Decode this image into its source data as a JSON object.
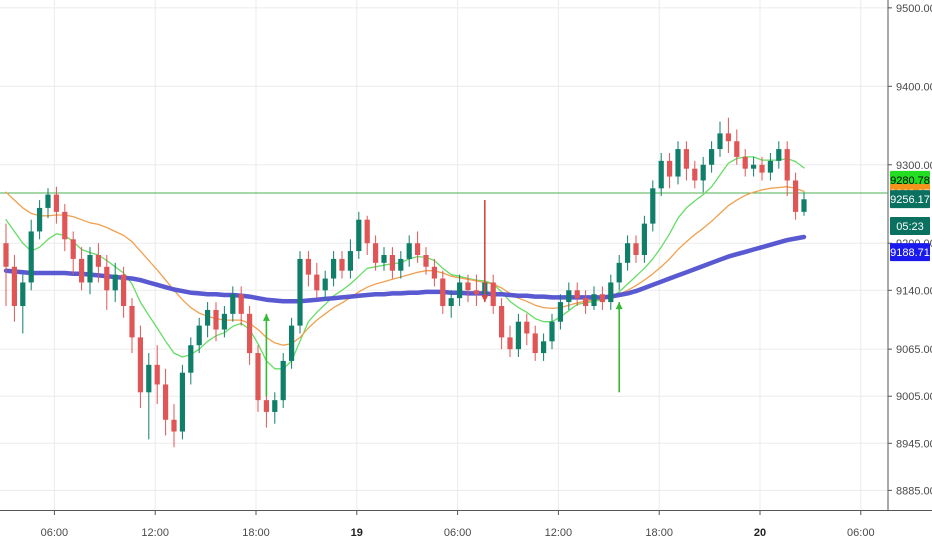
{
  "chart_data": {
    "type": "candlestick",
    "title": "",
    "grid": true,
    "y_axis": {
      "position": "right",
      "ylim": [
        8860,
        9510
      ],
      "ticks": [
        {
          "value": 9500,
          "label": "9500.00"
        },
        {
          "value": 9400,
          "label": "9400.00"
        },
        {
          "value": 9300,
          "label": "9300.00"
        },
        {
          "value": 9200,
          "label": "9200.00"
        },
        {
          "value": 9140,
          "label": "9140.00"
        },
        {
          "value": 9065,
          "label": "9065.00"
        },
        {
          "value": 9005,
          "label": "9005.00"
        },
        {
          "value": 8945,
          "label": "8945.00"
        },
        {
          "value": 8885,
          "label": "8885.00"
        }
      ]
    },
    "x_axis": {
      "xlim": [
        0,
        96
      ],
      "ticks": [
        {
          "x": 6,
          "label": "06:00",
          "bold": false
        },
        {
          "x": 18,
          "label": "12:00",
          "bold": false
        },
        {
          "x": 30,
          "label": "18:00",
          "bold": false
        },
        {
          "x": 42,
          "label": "19",
          "bold": true
        },
        {
          "x": 54,
          "label": "06:00",
          "bold": false
        },
        {
          "x": 66,
          "label": "12:00",
          "bold": false
        },
        {
          "x": 78,
          "label": "18:00",
          "bold": false
        },
        {
          "x": 90,
          "label": "20",
          "bold": true
        },
        {
          "x": 102,
          "label": "06:00",
          "bold": false
        }
      ]
    },
    "horizontal_line": {
      "value": 9263.97,
      "color": "#4caf50"
    },
    "candles": [
      [
        9200,
        9170,
        9225,
        9120
      ],
      [
        9170,
        9120,
        9185,
        9100
      ],
      [
        9120,
        9150,
        9160,
        9085
      ],
      [
        9150,
        9215,
        9230,
        9140
      ],
      [
        9215,
        9245,
        9255,
        9205
      ],
      [
        9245,
        9262,
        9270,
        9232
      ],
      [
        9262,
        9240,
        9272,
        9225
      ],
      [
        9240,
        9205,
        9250,
        9190
      ],
      [
        9205,
        9180,
        9215,
        9160
      ],
      [
        9180,
        9150,
        9195,
        9140
      ],
      [
        9150,
        9185,
        9195,
        9135
      ],
      [
        9185,
        9170,
        9200,
        9150
      ],
      [
        9170,
        9140,
        9185,
        9115
      ],
      [
        9140,
        9160,
        9175,
        9125
      ],
      [
        9160,
        9120,
        9170,
        9105
      ],
      [
        9120,
        9080,
        9130,
        9060
      ],
      [
        9080,
        9010,
        9095,
        8990
      ],
      [
        9010,
        9045,
        9060,
        8950
      ],
      [
        9045,
        9020,
        9070,
        8995
      ],
      [
        9020,
        8975,
        9040,
        8955
      ],
      [
        8975,
        8960,
        8995,
        8940
      ],
      [
        8960,
        9035,
        9045,
        8950
      ],
      [
        9035,
        9070,
        9080,
        9020
      ],
      [
        9070,
        9095,
        9105,
        9060
      ],
      [
        9095,
        9115,
        9125,
        9080
      ],
      [
        9115,
        9090,
        9125,
        9075
      ],
      [
        9090,
        9110,
        9120,
        9080
      ],
      [
        9110,
        9135,
        9145,
        9100
      ],
      [
        9135,
        9110,
        9145,
        9095
      ],
      [
        9110,
        9060,
        9120,
        9045
      ],
      [
        9060,
        9000,
        9070,
        8985
      ],
      [
        9000,
        8985,
        9015,
        8965
      ],
      [
        8985,
        9000,
        9010,
        8970
      ],
      [
        9000,
        9050,
        9060,
        8990
      ],
      [
        9050,
        9095,
        9105,
        9040
      ],
      [
        9095,
        9180,
        9190,
        9085
      ],
      [
        9180,
        9160,
        9190,
        9145
      ],
      [
        9160,
        9140,
        9175,
        9130
      ],
      [
        9140,
        9155,
        9165,
        9130
      ],
      [
        9155,
        9180,
        9190,
        9145
      ],
      [
        9180,
        9165,
        9190,
        9155
      ],
      [
        9165,
        9190,
        9205,
        9155
      ],
      [
        9190,
        9230,
        9240,
        9180
      ],
      [
        9230,
        9200,
        9235,
        9185
      ],
      [
        9200,
        9175,
        9210,
        9165
      ],
      [
        9175,
        9185,
        9195,
        9165
      ],
      [
        9185,
        9165,
        9195,
        9155
      ],
      [
        9165,
        9180,
        9190,
        9155
      ],
      [
        9180,
        9200,
        9210,
        9170
      ],
      [
        9200,
        9185,
        9215,
        9175
      ],
      [
        9185,
        9170,
        9195,
        9160
      ],
      [
        9170,
        9155,
        9180,
        9145
      ],
      [
        9155,
        9120,
        9165,
        9110
      ],
      [
        9120,
        9130,
        9140,
        9105
      ],
      [
        9130,
        9150,
        9160,
        9120
      ],
      [
        9150,
        9140,
        9160,
        9125
      ],
      [
        9140,
        9135,
        9160,
        9120
      ],
      [
        9135,
        9150,
        9165,
        9130
      ],
      [
        9150,
        9120,
        9160,
        9110
      ],
      [
        9120,
        9080,
        9130,
        9065
      ],
      [
        9080,
        9065,
        9095,
        9055
      ],
      [
        9065,
        9100,
        9110,
        9055
      ],
      [
        9100,
        9085,
        9110,
        9070
      ],
      [
        9085,
        9060,
        9095,
        9050
      ],
      [
        9060,
        9075,
        9085,
        9050
      ],
      [
        9075,
        9100,
        9110,
        9065
      ],
      [
        9100,
        9125,
        9135,
        9090
      ],
      [
        9125,
        9140,
        9150,
        9115
      ],
      [
        9140,
        9130,
        9150,
        9120
      ],
      [
        9130,
        9120,
        9140,
        9110
      ],
      [
        9120,
        9135,
        9145,
        9115
      ],
      [
        9135,
        9125,
        9145,
        9115
      ],
      [
        9125,
        9150,
        9160,
        9115
      ],
      [
        9150,
        9175,
        9185,
        9140
      ],
      [
        9175,
        9200,
        9210,
        9165
      ],
      [
        9200,
        9185,
        9210,
        9175
      ],
      [
        9185,
        9225,
        9235,
        9175
      ],
      [
        9225,
        9270,
        9280,
        9215
      ],
      [
        9270,
        9305,
        9315,
        9260
      ],
      [
        9305,
        9285,
        9315,
        9270
      ],
      [
        9285,
        9320,
        9330,
        9275
      ],
      [
        9320,
        9295,
        9330,
        9280
      ],
      [
        9295,
        9280,
        9305,
        9270
      ],
      [
        9280,
        9300,
        9310,
        9265
      ],
      [
        9300,
        9320,
        9330,
        9290
      ],
      [
        9320,
        9340,
        9355,
        9310
      ],
      [
        9340,
        9330,
        9360,
        9315
      ],
      [
        9330,
        9310,
        9345,
        9300
      ],
      [
        9310,
        9295,
        9320,
        9285
      ],
      [
        9295,
        9300,
        9310,
        9285
      ],
      [
        9300,
        9290,
        9310,
        9280
      ],
      [
        9290,
        9305,
        9315,
        9280
      ],
      [
        9305,
        9320,
        9330,
        9295
      ],
      [
        9320,
        9280,
        9330,
        9260
      ],
      [
        9280,
        9240,
        9290,
        9230
      ],
      [
        9240,
        9256,
        9265,
        9235
      ]
    ],
    "series": [
      {
        "color": "#66dd66",
        "width": 1.3,
        "values": [
          9230,
          9215,
          9200,
          9190,
          9195,
          9205,
          9212,
          9210,
          9202,
          9192,
          9188,
          9185,
          9178,
          9170,
          9162,
          9148,
          9125,
          9108,
          9092,
          9075,
          9060,
          9055,
          9058,
          9065,
          9075,
          9082,
          9086,
          9094,
          9098,
          9090,
          9072,
          9050,
          9040,
          9040,
          9050,
          9075,
          9100,
          9112,
          9122,
          9133,
          9140,
          9148,
          9158,
          9168,
          9170,
          9172,
          9174,
          9175,
          9180,
          9183,
          9182,
          9178,
          9168,
          9160,
          9158,
          9155,
          9153,
          9152,
          9148,
          9138,
          9126,
          9118,
          9112,
          9104,
          9100,
          9100,
          9106,
          9114,
          9122,
          9124,
          9126,
          9128,
          9131,
          9138,
          9148,
          9158,
          9168,
          9180,
          9195,
          9212,
          9232,
          9245,
          9254,
          9262,
          9272,
          9287,
          9302,
          9308,
          9310,
          9310,
          9306,
          9306,
          9306,
          9308,
          9304,
          9296
        ]
      },
      {
        "color": "#f0a050",
        "width": 1.3,
        "values": [
          9265,
          9255,
          9245,
          9238,
          9235,
          9235,
          9236,
          9236,
          9234,
          9230,
          9226,
          9224,
          9220,
          9215,
          9210,
          9202,
          9190,
          9178,
          9166,
          9153,
          9140,
          9128,
          9118,
          9111,
          9107,
          9104,
          9102,
          9102,
          9102,
          9098,
          9090,
          9080,
          9073,
          9070,
          9072,
          9080,
          9092,
          9102,
          9110,
          9118,
          9124,
          9131,
          9138,
          9144,
          9148,
          9151,
          9154,
          9157,
          9160,
          9163,
          9165,
          9165,
          9162,
          9158,
          9156,
          9154,
          9152,
          9150,
          9148,
          9143,
          9136,
          9130,
          9126,
          9121,
          9118,
          9117,
          9118,
          9121,
          9124,
          9126,
          9128,
          9130,
          9132,
          9135,
          9140,
          9146,
          9153,
          9161,
          9170,
          9180,
          9192,
          9202,
          9211,
          9219,
          9228,
          9238,
          9248,
          9255,
          9261,
          9265,
          9268,
          9270,
          9271,
          9272,
          9270,
          9266
        ]
      },
      {
        "color": "#5050d0",
        "width": 4.5,
        "values": [
          9165,
          9164,
          9163,
          9162,
          9162,
          9162,
          9162,
          9162,
          9161,
          9161,
          9160,
          9159,
          9158,
          9157,
          9156,
          9155,
          9153,
          9150,
          9147,
          9144,
          9141,
          9139,
          9137,
          9136,
          9135,
          9135,
          9134,
          9134,
          9133,
          9132,
          9130,
          9128,
          9127,
          9126,
          9126,
          9126,
          9127,
          9128,
          9129,
          9130,
          9131,
          9132,
          9133,
          9134,
          9135,
          9135,
          9136,
          9136,
          9137,
          9137,
          9138,
          9138,
          9138,
          9137,
          9137,
          9136,
          9136,
          9136,
          9135,
          9135,
          9134,
          9133,
          9133,
          9132,
          9132,
          9131,
          9131,
          9131,
          9131,
          9131,
          9131,
          9131,
          9132,
          9134,
          9136,
          9139,
          9143,
          9147,
          9151,
          9155,
          9159,
          9163,
          9167,
          9171,
          9175,
          9179,
          9183,
          9186,
          9189,
          9192,
          9195,
          9198,
          9201,
          9204,
          9206,
          9208
        ]
      }
    ],
    "arrows": [
      {
        "index": 31,
        "tail": 9005,
        "head": 9110,
        "direction": "up",
        "color": "#33bb33"
      },
      {
        "index": 57,
        "tail": 9255,
        "head": 9125,
        "direction": "down",
        "color": "#dd4444"
      },
      {
        "index": 73,
        "tail": 9010,
        "head": 9125,
        "direction": "up",
        "color": "#33bb33"
      }
    ],
    "price_labels": [
      {
        "value": 9280.78,
        "label": "9280.78",
        "bg": "#22dd22",
        "fg": "#000000"
      },
      {
        "value": 9263.97,
        "label": "9263.97",
        "bg": "#f5941d",
        "fg": "#ffffff"
      },
      {
        "value": 9256.17,
        "label": "9256.17",
        "bg": "#0a7060",
        "fg": "#ffffff"
      },
      {
        "value": 9222.0,
        "label": "05:23",
        "bg": "#0a7060",
        "fg": "#ffffff"
      },
      {
        "value": 9188.71,
        "label": "9188.71",
        "bg": "#1a1aee",
        "fg": "#ffffff"
      }
    ],
    "colors": {
      "up": "#0f7f6a",
      "down": "#e05555",
      "grid": "#ebebeb",
      "axis": "#555555"
    }
  }
}
